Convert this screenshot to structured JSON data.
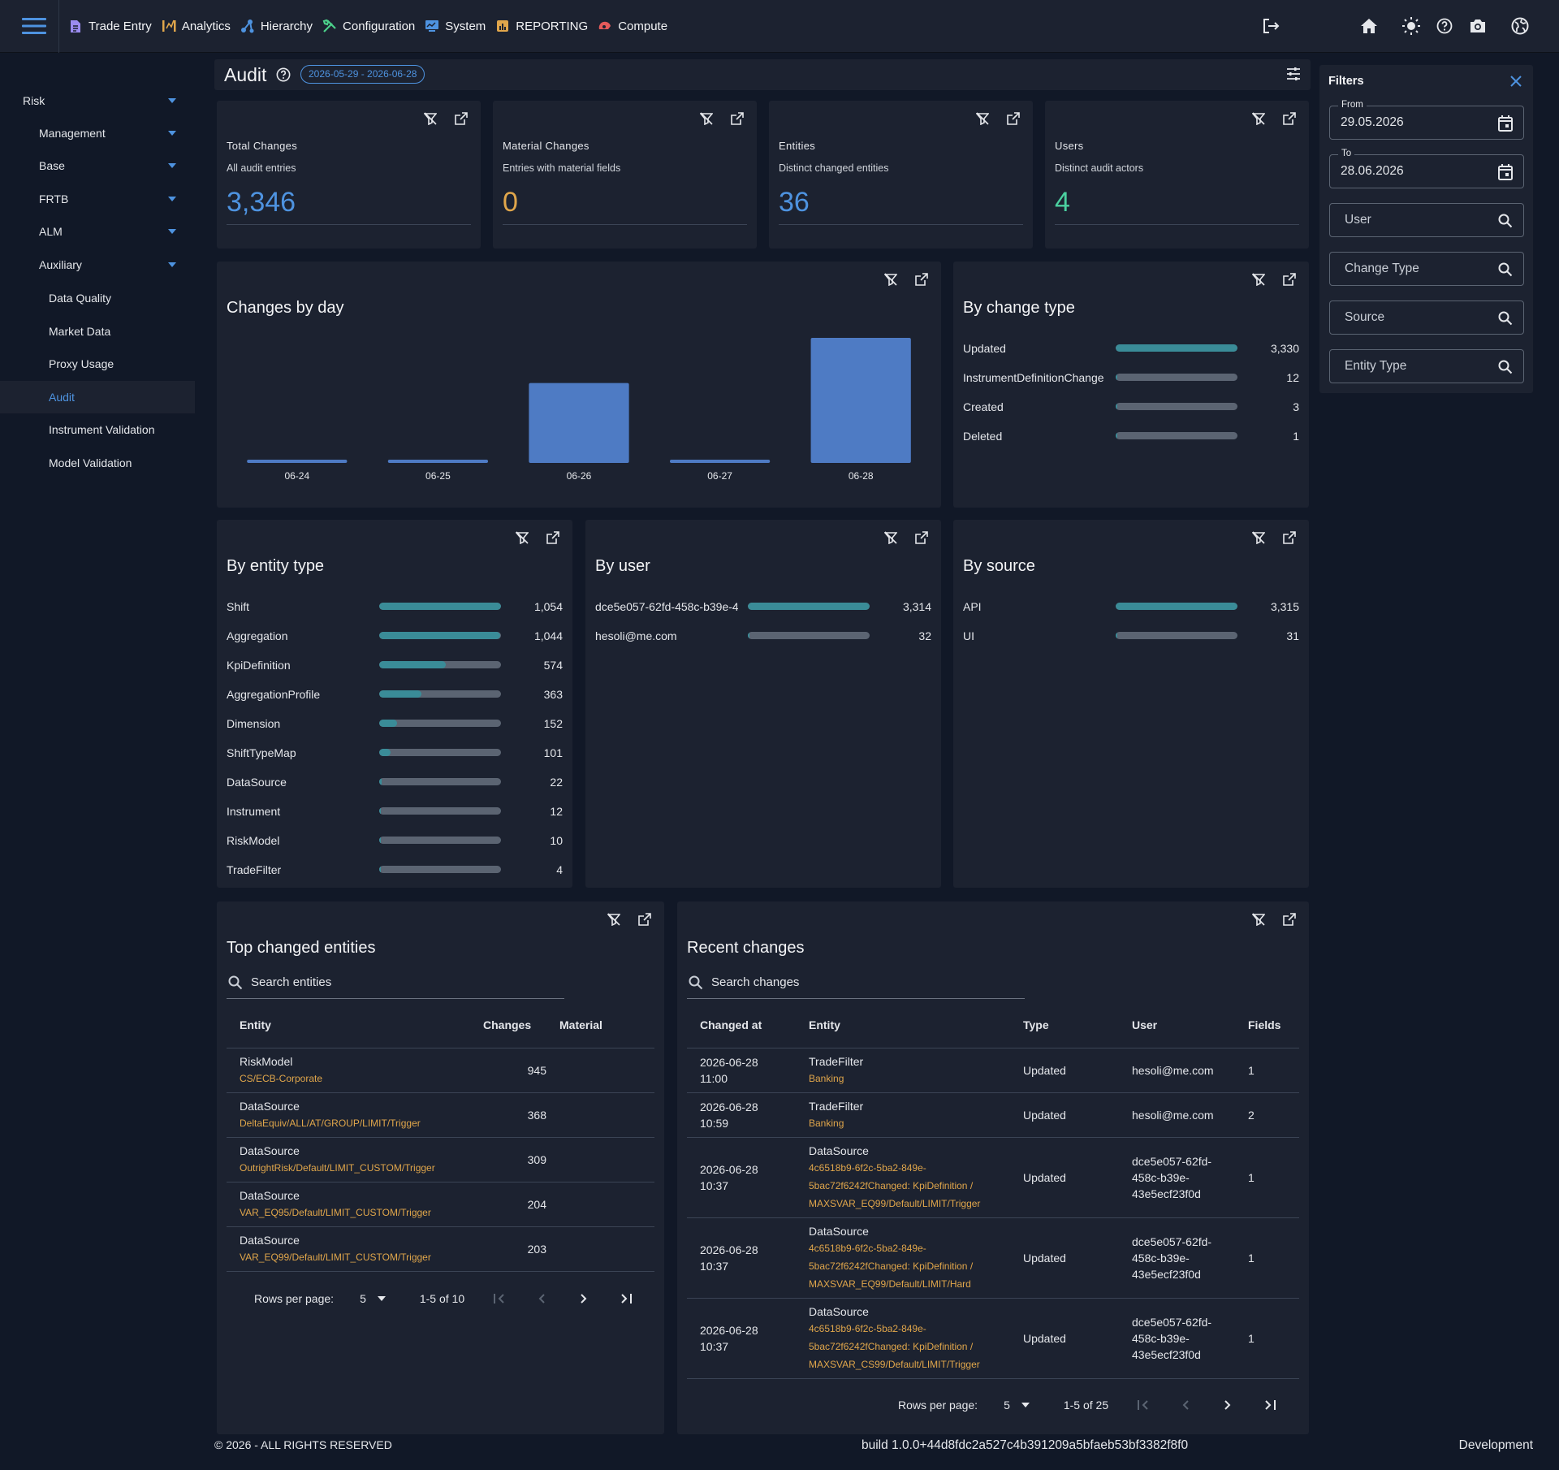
{
  "colors": {
    "accent": "#4e93e0",
    "teal": "#3a8c98",
    "track": "#5b6472",
    "orange": "#e0a64b",
    "green": "#4bd0a0",
    "card": "#1c2230",
    "bg": "#111827"
  },
  "topnav": [
    {
      "label": "Trade Entry",
      "icon": "document-icon"
    },
    {
      "label": "Analytics",
      "icon": "analytics-icon"
    },
    {
      "label": "Hierarchy",
      "icon": "hierarchy-icon"
    },
    {
      "label": "Configuration",
      "icon": "tools-icon"
    },
    {
      "label": "System",
      "icon": "system-icon"
    },
    {
      "label": "REPORTING",
      "icon": "report-icon"
    },
    {
      "label": "Compute",
      "icon": "compute-icon"
    }
  ],
  "sidebar": {
    "items": [
      {
        "label": "Risk",
        "level": 0,
        "caret": true
      },
      {
        "label": "Management",
        "level": 1,
        "caret": true
      },
      {
        "label": "Base",
        "level": 1,
        "caret": true
      },
      {
        "label": "FRTB",
        "level": 1,
        "caret": true
      },
      {
        "label": "ALM",
        "level": 1,
        "caret": true
      },
      {
        "label": "Auxiliary",
        "level": 1,
        "caret": true
      },
      {
        "label": "Data Quality",
        "level": 2,
        "caret": false
      },
      {
        "label": "Market Data",
        "level": 2,
        "caret": false
      },
      {
        "label": "Proxy Usage",
        "level": 2,
        "caret": false
      },
      {
        "label": "Audit",
        "level": 2,
        "caret": false,
        "active": true
      },
      {
        "label": "Instrument Validation",
        "level": 2,
        "caret": false
      },
      {
        "label": "Model Validation",
        "level": 2,
        "caret": false
      }
    ]
  },
  "page": {
    "title": "Audit",
    "date_range": "2026-05-29 - 2026-06-28"
  },
  "kpis": [
    {
      "label": "Total Changes",
      "sub": "All audit entries",
      "value": "3,346",
      "color": "#4e93e0"
    },
    {
      "label": "Material Changes",
      "sub": "Entries with material fields",
      "value": "0",
      "color": "#e0a64b"
    },
    {
      "label": "Entities",
      "sub": "Distinct changed entities",
      "value": "36",
      "color": "#4e93e0"
    },
    {
      "label": "Users",
      "sub": "Distinct audit actors",
      "value": "4",
      "color": "#4bd0a0"
    }
  ],
  "chart_data": {
    "type": "bar",
    "title": "Changes by day",
    "categories": [
      "06-24",
      "06-25",
      "06-26",
      "06-27",
      "06-28"
    ],
    "values": [
      5,
      5,
      1298,
      5,
      2033
    ],
    "ylim": [
      0,
      2033
    ],
    "color": "#4e7bc4",
    "grid": false
  },
  "by_change_type": {
    "title": "By change type",
    "rows": [
      {
        "label": "Updated",
        "value": 3330,
        "display": "3,330"
      },
      {
        "label": "InstrumentDefinitionChange",
        "value": 12,
        "display": "12"
      },
      {
        "label": "Created",
        "value": 3,
        "display": "3"
      },
      {
        "label": "Deleted",
        "value": 1,
        "display": "1"
      }
    ]
  },
  "by_entity_type": {
    "title": "By entity type",
    "rows": [
      {
        "label": "Shift",
        "value": 1054,
        "display": "1,054"
      },
      {
        "label": "Aggregation",
        "value": 1044,
        "display": "1,044"
      },
      {
        "label": "KpiDefinition",
        "value": 574,
        "display": "574"
      },
      {
        "label": "AggregationProfile",
        "value": 363,
        "display": "363"
      },
      {
        "label": "Dimension",
        "value": 152,
        "display": "152"
      },
      {
        "label": "ShiftTypeMap",
        "value": 101,
        "display": "101"
      },
      {
        "label": "DataSource",
        "value": 22,
        "display": "22"
      },
      {
        "label": "Instrument",
        "value": 12,
        "display": "12"
      },
      {
        "label": "RiskModel",
        "value": 10,
        "display": "10"
      },
      {
        "label": "TradeFilter",
        "value": 4,
        "display": "4"
      }
    ]
  },
  "by_user": {
    "title": "By user",
    "rows": [
      {
        "label": "dce5e057-62fd-458c-b39e-4",
        "value": 3314,
        "display": "3,314"
      },
      {
        "label": "hesoli@me.com",
        "value": 32,
        "display": "32"
      }
    ]
  },
  "by_source": {
    "title": "By source",
    "rows": [
      {
        "label": "API",
        "value": 3315,
        "display": "3,315"
      },
      {
        "label": "UI",
        "value": 31,
        "display": "31"
      }
    ]
  },
  "top_entities": {
    "title": "Top changed entities",
    "search_placeholder": "Search entities",
    "columns": [
      "Entity",
      "Changes",
      "Material"
    ],
    "rows": [
      {
        "entity": "RiskModel",
        "path": "CS/ECB-Corporate",
        "changes": "945",
        "material": ""
      },
      {
        "entity": "DataSource",
        "path": "DeltaEquiv/ALL/AT/GROUP/LIMIT/Trigger",
        "changes": "368",
        "material": ""
      },
      {
        "entity": "DataSource",
        "path": "OutrightRisk/Default/LIMIT_CUSTOM/Trigger",
        "changes": "309",
        "material": ""
      },
      {
        "entity": "DataSource",
        "path": "VAR_EQ95/Default/LIMIT_CUSTOM/Trigger",
        "changes": "204",
        "material": ""
      },
      {
        "entity": "DataSource",
        "path": "VAR_EQ99/Default/LIMIT_CUSTOM/Trigger",
        "changes": "203",
        "material": ""
      }
    ],
    "pager": {
      "rows_label": "Rows per page:",
      "rows_value": "5",
      "range": "1-5 of 10"
    }
  },
  "recent_changes": {
    "title": "Recent changes",
    "search_placeholder": "Search changes",
    "columns": [
      "Changed at",
      "Entity",
      "Type",
      "User",
      "Fields"
    ],
    "rows": [
      {
        "changed_at": "2026-06-28 11:00",
        "entity": "TradeFilter",
        "detail": "Banking",
        "type": "Updated",
        "user": "hesoli@me.com",
        "fields": "1"
      },
      {
        "changed_at": "2026-06-28 10:59",
        "entity": "TradeFilter",
        "detail": "Banking",
        "type": "Updated",
        "user": "hesoli@me.com",
        "fields": "2"
      },
      {
        "changed_at": "2026-06-28 10:37",
        "entity": "DataSource",
        "detail": "4c6518b9-6f2c-5ba2-849e-5bac72f6242fChanged: KpiDefinition / MAXSVAR_EQ99/Default/LIMIT/Trigger",
        "type": "Updated",
        "user": "dce5e057-62fd-458c-b39e-43e5ecf23f0d",
        "fields": "1"
      },
      {
        "changed_at": "2026-06-28 10:37",
        "entity": "DataSource",
        "detail": "4c6518b9-6f2c-5ba2-849e-5bac72f6242fChanged: KpiDefinition / MAXSVAR_EQ99/Default/LIMIT/Hard",
        "type": "Updated",
        "user": "dce5e057-62fd-458c-b39e-43e5ecf23f0d",
        "fields": "1"
      },
      {
        "changed_at": "2026-06-28 10:37",
        "entity": "DataSource",
        "detail": "4c6518b9-6f2c-5ba2-849e-5bac72f6242fChanged: KpiDefinition / MAXSVAR_CS99/Default/LIMIT/Trigger",
        "type": "Updated",
        "user": "dce5e057-62fd-458c-b39e-43e5ecf23f0d",
        "fields": "1"
      }
    ],
    "pager": {
      "rows_label": "Rows per page:",
      "rows_value": "5",
      "range": "1-5 of 25"
    }
  },
  "filters": {
    "title": "Filters",
    "from_label": "From",
    "from_value": "29.05.2026",
    "to_label": "To",
    "to_value": "28.06.2026",
    "user_placeholder": "User",
    "change_type_placeholder": "Change Type",
    "source_placeholder": "Source",
    "entity_type_placeholder": "Entity Type"
  },
  "footer": {
    "copyright": "© 2026 - ALL RIGHTS RESERVED",
    "build": "build 1.0.0+44d8fdc2a527c4b391209a5bfaeb53bf3382f8f0",
    "env": "Development"
  }
}
